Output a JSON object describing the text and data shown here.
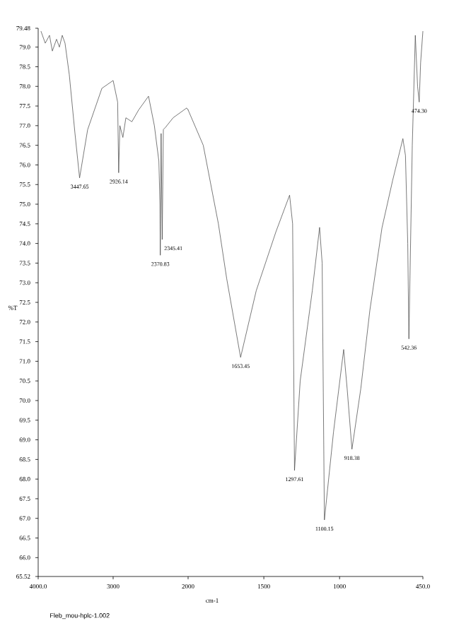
{
  "chart_data": [
    {
      "type": "line",
      "ylabel": "%T",
      "xlim": [
        4000,
        2000
      ],
      "ylim": [
        65.52,
        79.48
      ],
      "xticks": [
        {
          "value": 4000,
          "label": "4000.0"
        },
        3000,
        2000
      ],
      "marker": "none",
      "line_style": "solid",
      "grid": false,
      "yticks": [
        65.52,
        {
          "value": 66,
          "label": "66.0"
        },
        66.5,
        {
          "value": 67,
          "label": "67.0"
        },
        67.5,
        {
          "value": 68,
          "label": "68.0"
        },
        68.5,
        {
          "value": 69,
          "label": "69.0"
        },
        69.5,
        {
          "value": 70,
          "label": "70.0"
        },
        70.5,
        {
          "value": 71,
          "label": "71.0"
        },
        71.5,
        {
          "value": 72,
          "label": "72.0"
        },
        72.5,
        {
          "value": 73,
          "label": "73.0"
        },
        73.5,
        {
          "value": 74,
          "label": "74.0"
        },
        74.5,
        {
          "value": 75,
          "label": "75.0"
        },
        75.5,
        {
          "value": 76,
          "label": "76.0"
        },
        76.5,
        {
          "value": 77,
          "label": "77.0"
        },
        77.5,
        {
          "value": 78,
          "label": "78.0"
        },
        78.5,
        {
          "value": 79,
          "label": "79.0"
        },
        79.48
      ],
      "series": [
        {
          "color": "#404040",
          "x": [
            3962,
            3906,
            3849,
            3811,
            3755,
            3717,
            3679,
            3642,
            3585,
            3509,
            3447.65,
            3340,
            3150,
            3000,
            2940,
            2926.14,
            2910,
            2870,
            2830,
            2750,
            2660,
            2528,
            2450,
            2390,
            2375,
            2370.83,
            2360,
            2345.41,
            2330,
            2300,
            2200,
            2019,
            2000
          ],
          "values": [
            79.4,
            79.1,
            79.3,
            78.9,
            79.2,
            79.0,
            79.3,
            79.1,
            78.3,
            76.8,
            75.67,
            76.9,
            77.95,
            78.15,
            77.6,
            75.8,
            77.0,
            76.7,
            77.2,
            77.1,
            77.4,
            77.75,
            77.0,
            76.1,
            75.0,
            73.7,
            76.8,
            74.1,
            76.9,
            76.96,
            77.2,
            77.45,
            77.4
          ]
        }
      ],
      "annotations": [
        {
          "text": "3447.65",
          "x": 3447.65,
          "y": 75.67
        },
        {
          "text": "2926.14",
          "x": 2926.14,
          "y": 75.8
        },
        {
          "text": "2345.41",
          "x": 2345.41,
          "y": 74.1
        },
        {
          "text": "2370.83",
          "x": 2370.83,
          "y": 73.7
        },
        "Fleb_mou-hplc-1.002"
      ]
    },
    {
      "type": "line",
      "xlabel": "cm-1",
      "tick_labels": "x",
      "xlim": [
        2000,
        450
      ],
      "ylim": [
        65.52,
        79.48
      ],
      "xticks": [
        1500,
        1000,
        {
          "value": 450,
          "label": "450.0"
        }
      ],
      "grid": false,
      "marker": "none",
      "line_style": "solid",
      "series": [
        {
          "color": "#404040",
          "x": [
            2000,
            1900,
            1800,
            1745,
            1653.45,
            1550,
            1420,
            1330,
            1310,
            1297.61,
            1260,
            1180,
            1132,
            1115,
            1100.15,
            1040,
            973,
            950,
            918.38,
            860,
            800,
            720,
            650,
            582,
            565,
            550,
            542.36,
            520,
            500,
            485,
            474.3,
            465,
            450
          ],
          "values": [
            77.4,
            76.5,
            74.5,
            73.1,
            71.1,
            72.8,
            74.3,
            75.23,
            74.5,
            68.22,
            70.5,
            72.8,
            74.41,
            73.5,
            66.96,
            69.2,
            71.3,
            70.3,
            68.76,
            70.3,
            72.3,
            74.4,
            75.6,
            76.67,
            76.24,
            74.0,
            71.57,
            76.5,
            79.3,
            78.0,
            77.6,
            78.6,
            79.4
          ]
        }
      ],
      "annotations": [
        {
          "text": "1653.45",
          "x": 1653.45,
          "y": 71.1
        },
        {
          "text": "1297.61",
          "x": 1297.61,
          "y": 68.22
        },
        {
          "text": "1100.15",
          "x": 1100.15,
          "y": 66.96
        },
        {
          "text": "918.38",
          "x": 918.38,
          "y": 68.76
        },
        {
          "text": "542.36",
          "x": 542.36,
          "y": 71.57
        },
        {
          "text": "474.30",
          "x": 474.3,
          "y": 77.6
        }
      ]
    }
  ]
}
